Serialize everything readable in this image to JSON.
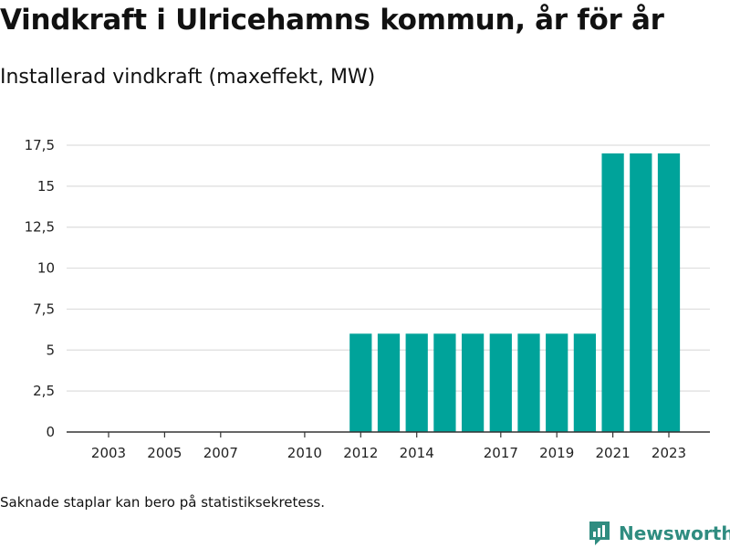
{
  "chart_data": {
    "type": "bar",
    "title": "Vindkraft i Ulricehamns kommun, år för år",
    "subtitle": "Installerad vindkraft (maxeffekt, MW)",
    "categories": [
      2003,
      2004,
      2005,
      2006,
      2007,
      2008,
      2009,
      2010,
      2011,
      2012,
      2013,
      2014,
      2015,
      2016,
      2017,
      2018,
      2019,
      2020,
      2021,
      2022,
      2023
    ],
    "values": [
      0,
      0,
      0,
      0,
      0,
      0,
      0,
      0,
      0,
      6,
      6,
      6,
      6,
      6,
      6,
      6,
      6,
      6,
      17,
      17,
      17
    ],
    "x_tick_labels": [
      "2003",
      "2005",
      "2007",
      "2010",
      "2012",
      "2014",
      "2017",
      "2019",
      "2021",
      "2023"
    ],
    "x_tick_values": [
      2003,
      2005,
      2007,
      2010,
      2012,
      2014,
      2017,
      2019,
      2021,
      2023
    ],
    "y_tick_labels": [
      "0",
      "2,5",
      "5",
      "7,5",
      "10",
      "12,5",
      "15",
      "17,5"
    ],
    "y_tick_values": [
      0,
      2.5,
      5,
      7.5,
      10,
      12.5,
      15,
      17.5
    ],
    "ylim": [
      0,
      17.5
    ],
    "xlabel": "",
    "ylabel": "",
    "grid": true,
    "legend": "none",
    "bar_color": "#00a39a",
    "grid_color": "#dddddd",
    "axis_color": "#333333"
  },
  "footnote": "Saknade staplar kan bero på statistiksekretess.",
  "brand": {
    "name": "Newsworthy",
    "icon": "newsworthy-logo-icon",
    "color": "#2f8c80"
  }
}
